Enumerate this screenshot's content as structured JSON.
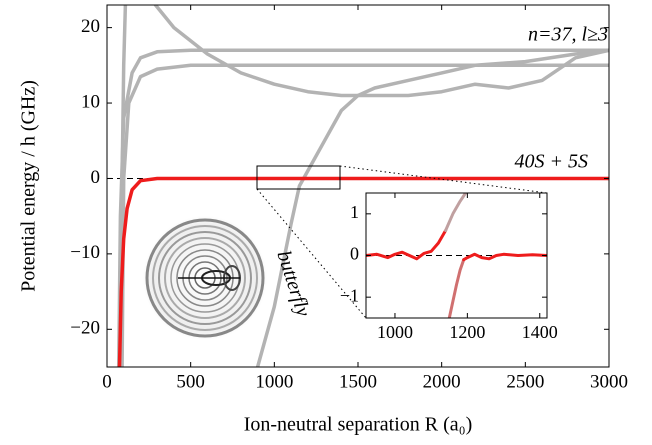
{
  "chart_data": [
    {
      "type": "line",
      "xlabel": "Ion-neutral separation R (a₀)",
      "ylabel": "Potential energy / h (GHz)",
      "annotations": [
        {
          "text": "n=37, l≥3"
        },
        {
          "text": "40S + 5S"
        },
        {
          "text": "butterfly"
        }
      ],
      "xlim": [
        0,
        3000
      ],
      "ylim": [
        -25,
        23
      ],
      "xticks": [
        0,
        500,
        1000,
        1500,
        2000,
        2500,
        3000
      ],
      "yticks": [
        {
          "value": -20,
          "label": "−20"
        },
        {
          "value": -10,
          "label": "−10"
        },
        0,
        10,
        20
      ],
      "zero_line": true,
      "series": [
        {
          "color": "#b3b3b3",
          "x": [
            70,
            80,
            100,
            150,
            200,
            300,
            500,
            1000,
            2000,
            3000
          ],
          "values": [
            -25,
            -5,
            8,
            14,
            16,
            16.8,
            17,
            17,
            17,
            17
          ]
        },
        {
          "color": "#b3b3b3",
          "x": [
            90,
            100,
            130,
            200,
            300,
            500,
            1000,
            2000,
            3000
          ],
          "values": [
            -25,
            0,
            10,
            13.5,
            14.5,
            15,
            15,
            15,
            15
          ]
        },
        {
          "color": "#b3b3b3",
          "x": [
            80,
            90,
            100,
            110
          ],
          "values": [
            -25,
            0,
            15,
            23
          ]
        },
        {
          "color": "#b3b3b3",
          "x": [
            290,
            400,
            600,
            800,
            1000,
            1200,
            1400,
            1600,
            1800,
            2000,
            2200,
            2400,
            2600,
            2800,
            3000
          ],
          "values": [
            23,
            20,
            16.5,
            14,
            12.5,
            11.5,
            11,
            11,
            11,
            11.5,
            12.5,
            12,
            13,
            16,
            17
          ]
        },
        {
          "color": "#b3b3b3",
          "x": [
            900,
            1000,
            1100,
            1150,
            1200,
            1300,
            1400,
            1500,
            1600,
            1800,
            2000,
            2200,
            2500,
            2800,
            3000
          ],
          "values": [
            -25,
            -17,
            -6,
            -1,
            1,
            5,
            9,
            11,
            12,
            13,
            14,
            15,
            15.5,
            16.5,
            17
          ]
        },
        {
          "color": "#ee1c1c",
          "x": [
            75,
            85,
            100,
            120,
            150,
            200,
            300,
            500,
            1000,
            1500,
            2000,
            3000
          ],
          "values": [
            -25,
            -15,
            -8,
            -4,
            -1.5,
            -0.3,
            0,
            0,
            0,
            0,
            0,
            0
          ]
        }
      ]
    },
    {
      "type": "line",
      "xlim": [
        920,
        1420
      ],
      "ylim": [
        -1.5,
        1.5
      ],
      "xticks": [
        1000,
        1200,
        1400
      ],
      "yticks": [
        {
          "value": -1,
          "label": "−1"
        },
        0,
        1
      ],
      "zero_line": true,
      "series": [
        {
          "color": "#ee1c1c",
          "x": [
            920,
            950,
            980,
            1000,
            1020,
            1040,
            1060,
            1080,
            1100,
            1120,
            1140
          ],
          "values": [
            0,
            0.03,
            -0.05,
            0.03,
            0.08,
            0,
            -0.08,
            0.05,
            0.1,
            0.3,
            0.6
          ]
        },
        {
          "color": "#c0a0a0",
          "x": [
            1140,
            1160,
            1180,
            1195
          ],
          "values": [
            0.6,
            1.0,
            1.3,
            1.5
          ]
        },
        {
          "color": "#d07070",
          "x": [
            1150,
            1160,
            1170,
            1180,
            1190
          ],
          "values": [
            -1.5,
            -1.1,
            -0.7,
            -0.35,
            -0.1
          ]
        },
        {
          "color": "#ee1c1c",
          "x": [
            1190,
            1200,
            1220,
            1240,
            1260,
            1280,
            1300,
            1340,
            1380,
            1420
          ],
          "values": [
            -0.1,
            -0.05,
            0.03,
            -0.05,
            -0.08,
            0,
            0.03,
            0,
            0.02,
            0
          ]
        }
      ]
    }
  ]
}
